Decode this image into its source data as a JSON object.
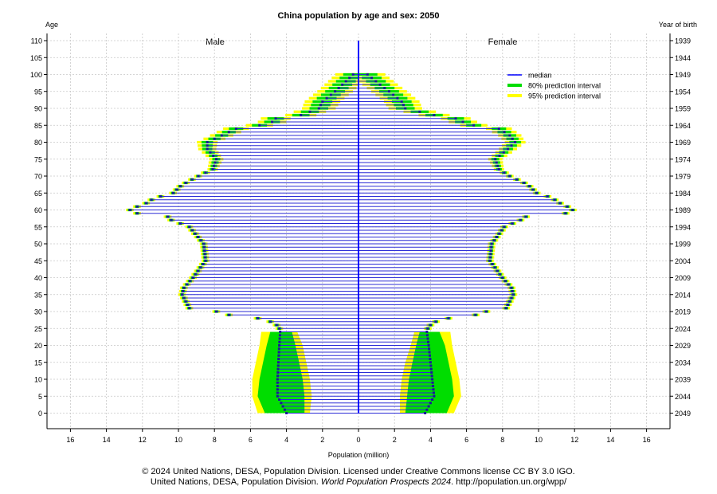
{
  "chart_data": {
    "type": "bar",
    "orientation": "horizontal-population-pyramid",
    "title": "China population by age and sex: 2050",
    "left_axis_label": "Age",
    "right_axis_label": "Year of birth",
    "xlabel": "Population (million)",
    "side_labels": {
      "male": "Male",
      "female": "Female"
    },
    "xlim": [
      -17,
      17
    ],
    "x_ticks": [
      16,
      14,
      12,
      10,
      8,
      6,
      4,
      2,
      0,
      2,
      4,
      6,
      8,
      10,
      12,
      14,
      16
    ],
    "age_ticks": [
      "0",
      "5",
      "10",
      "15",
      "20",
      "25",
      "30",
      "35",
      "40",
      "45",
      "50",
      "55",
      "60",
      "65",
      "70",
      "75",
      "80",
      "85",
      "90",
      "95",
      "100",
      "105",
      "110"
    ],
    "birth_year_ticks": [
      "2049",
      "2044",
      "2039",
      "2034",
      "2029",
      "2024",
      "2019",
      "2014",
      "2009",
      "2004",
      "1999",
      "1994",
      "1989",
      "1984",
      "1979",
      "1974",
      "1969",
      "1964",
      "1959",
      "1954",
      "1949",
      "1944",
      "1939"
    ],
    "grid": true,
    "legend_position": "top-right",
    "legend": [
      {
        "label": "median",
        "color": "#0000ff"
      },
      {
        "label": "80% prediction interval",
        "color": "#00dd00"
      },
      {
        "label": "95% prediction interval",
        "color": "#ffff00"
      }
    ],
    "age_keypoints": [
      0,
      5,
      10,
      15,
      20,
      24,
      25,
      26,
      27,
      28,
      29,
      30,
      31,
      33,
      35,
      37,
      40,
      45,
      50,
      55,
      57,
      58,
      59,
      60,
      61,
      62,
      63,
      64,
      65,
      67,
      68,
      70,
      72,
      75,
      78,
      80,
      82,
      84,
      85,
      86,
      87,
      88,
      90,
      92,
      95,
      97,
      100,
      103,
      105,
      110
    ],
    "male_median_millions": [
      4.0,
      4.5,
      4.5,
      4.45,
      4.4,
      4.35,
      4.4,
      4.55,
      4.9,
      5.6,
      7.2,
      7.9,
      9.4,
      9.6,
      9.8,
      9.7,
      9.2,
      8.5,
      8.6,
      9.4,
      10.4,
      10.6,
      12.3,
      12.7,
      12.3,
      11.8,
      11.5,
      11.0,
      10.3,
      9.9,
      9.6,
      8.9,
      8.1,
      7.9,
      8.4,
      8.4,
      7.6,
      6.8,
      5.5,
      4.8,
      4.6,
      3.2,
      2.2,
      2.0,
      1.3,
      0.9,
      0.3,
      0.1,
      0.05,
      0.02
    ],
    "female_median_millions": [
      3.7,
      4.2,
      4.1,
      4.0,
      3.9,
      3.8,
      3.85,
      4.0,
      4.3,
      5.0,
      6.5,
      7.1,
      8.2,
      8.4,
      8.6,
      8.5,
      8.0,
      7.3,
      7.4,
      8.1,
      9.0,
      9.3,
      11.5,
      11.9,
      11.6,
      11.2,
      10.9,
      10.5,
      9.9,
      9.5,
      9.2,
      8.4,
      7.8,
      7.6,
      8.3,
      8.7,
      8.4,
      7.8,
      6.4,
      5.8,
      5.4,
      4.2,
      2.6,
      2.4,
      1.7,
      1.2,
      0.5,
      0.2,
      0.08,
      0.03
    ],
    "interval_85_ages_below_age_25": {
      "male_95_low": [
        2.7,
        2.6,
        2.7,
        2.9,
        3.1,
        3.4
      ],
      "male_80_low": [
        3.0,
        3.0,
        3.1,
        3.3,
        3.5,
        3.7
      ],
      "male_80_high": [
        5.2,
        5.6,
        5.5,
        5.3,
        5.1,
        4.9
      ],
      "male_95_high": [
        5.6,
        5.9,
        5.9,
        5.7,
        5.5,
        5.4
      ],
      "female_95_low": [
        2.3,
        2.3,
        2.4,
        2.6,
        2.9,
        3.1
      ],
      "female_80_low": [
        2.6,
        2.7,
        2.8,
        3.0,
        3.2,
        3.4
      ],
      "female_80_high": [
        4.9,
        5.3,
        5.2,
        5.0,
        4.8,
        4.5
      ],
      "female_95_high": [
        5.3,
        5.7,
        5.6,
        5.4,
        5.2,
        5.1
      ]
    }
  },
  "footer": {
    "line1": "© 2024 United Nations, DESA, Population Division. Licensed under Creative Commons license CC BY 3.0 IGO.",
    "line2_prefix": "United Nations, DESA, Population Division. ",
    "line2_italic": "World Population Prospects 2024",
    "line2_suffix": ". http://population.un.org/wpp/"
  }
}
